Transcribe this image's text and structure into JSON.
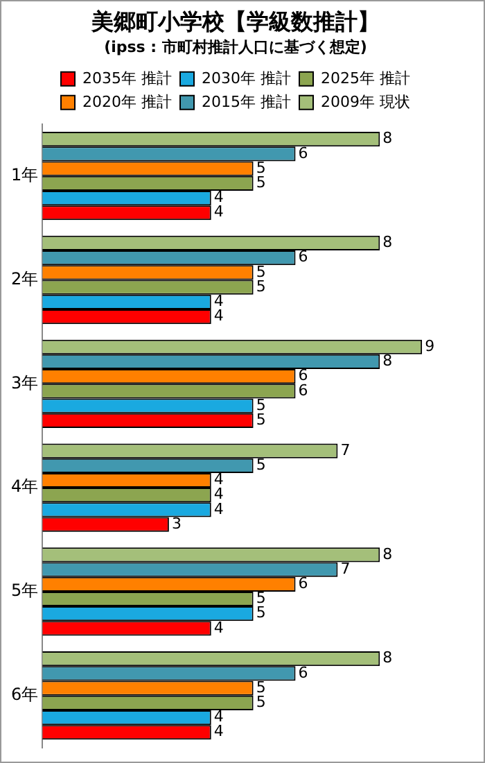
{
  "chart_data": {
    "type": "bar",
    "orientation": "horizontal",
    "title": "美郷町小学校【学級数推計】",
    "subtitle": "(ipss : 市町村推計人口に基づく想定)",
    "categories": [
      "1年",
      "2年",
      "3年",
      "4年",
      "5年",
      "6年"
    ],
    "series": [
      {
        "name": "2009年 現状",
        "color": "#a4bf7a",
        "values": [
          8,
          8,
          9,
          7,
          8,
          8
        ]
      },
      {
        "name": "2015年 推計",
        "color": "#4198af",
        "values": [
          6,
          6,
          8,
          5,
          7,
          6
        ]
      },
      {
        "name": "2020年 推計",
        "color": "#ff8000",
        "values": [
          5,
          5,
          6,
          4,
          6,
          5
        ]
      },
      {
        "name": "2025年 推計",
        "color": "#8ca550",
        "values": [
          5,
          5,
          6,
          4,
          5,
          5
        ]
      },
      {
        "name": "2030年 推計",
        "color": "#1aa9e0",
        "values": [
          4,
          4,
          5,
          4,
          5,
          4
        ]
      },
      {
        "name": "2035年 推計",
        "color": "#ff0000",
        "values": [
          4,
          4,
          5,
          3,
          4,
          4
        ]
      }
    ],
    "data_labels": true,
    "tick_labels": "y",
    "grid": false,
    "legend": "top"
  }
}
